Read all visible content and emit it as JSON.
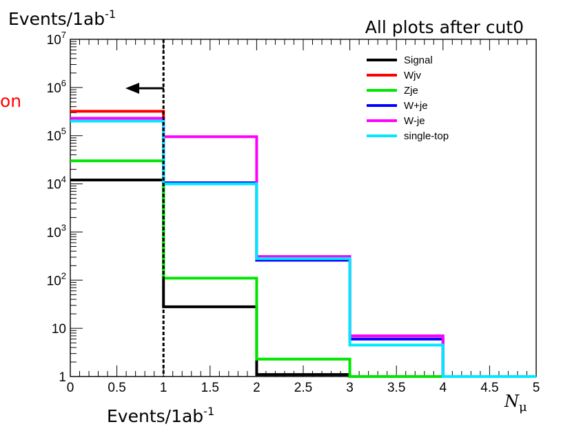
{
  "header": {
    "ytitle_base": "Events/1ab",
    "ytitle_exp": "-1",
    "subtitle": "All plots after cut0",
    "side_text": "on",
    "bottom_ytitle_base": "Events/1ab",
    "bottom_ytitle_exp": "-1"
  },
  "chart_data": {
    "type": "line",
    "step": "histogram",
    "title": "All plots after cut0",
    "xlabel": "N_μ",
    "xlabel_main": "N",
    "xlabel_sub": "μ",
    "ylabel": "Events/1ab-1",
    "xlim": [
      0,
      5
    ],
    "ylim": [
      1,
      10000000
    ],
    "ylog": true,
    "grid": false,
    "legend_position": "top-right",
    "bin_edges": [
      0,
      1,
      2,
      3,
      4,
      5
    ],
    "x_ticks": [
      "0",
      "0.5",
      "1",
      "1.5",
      "2",
      "2.5",
      "3",
      "3.5",
      "4",
      "4.5",
      "5"
    ],
    "y_ticks": [
      {
        "base": "1",
        "exp": ""
      },
      {
        "base": "10",
        "exp": ""
      },
      {
        "base": "10",
        "exp": "2"
      },
      {
        "base": "10",
        "exp": "3"
      },
      {
        "base": "10",
        "exp": "4"
      },
      {
        "base": "10",
        "exp": "5"
      },
      {
        "base": "10",
        "exp": "6"
      },
      {
        "base": "10",
        "exp": "7"
      }
    ],
    "cut_line_x": 1,
    "series": [
      {
        "name": "Signal",
        "color": "#000000",
        "values": [
          12000,
          28,
          1.1,
          1,
          1
        ]
      },
      {
        "name": "Wjv",
        "color": "#ff0000",
        "values": [
          320000,
          10500,
          260,
          6,
          1
        ]
      },
      {
        "name": "Zje",
        "color": "#00e600",
        "values": [
          30000,
          110,
          2.3,
          1,
          1
        ]
      },
      {
        "name": "W+je",
        "color": "#0000ff",
        "values": [
          230000,
          10500,
          260,
          6,
          1
        ]
      },
      {
        "name": "W-je",
        "color": "#ff00ff",
        "values": [
          230000,
          95000,
          310,
          7,
          1
        ]
      },
      {
        "name": "single-top",
        "color": "#00e8ff",
        "values": [
          200000,
          10000,
          280,
          4.5,
          1
        ]
      }
    ]
  }
}
